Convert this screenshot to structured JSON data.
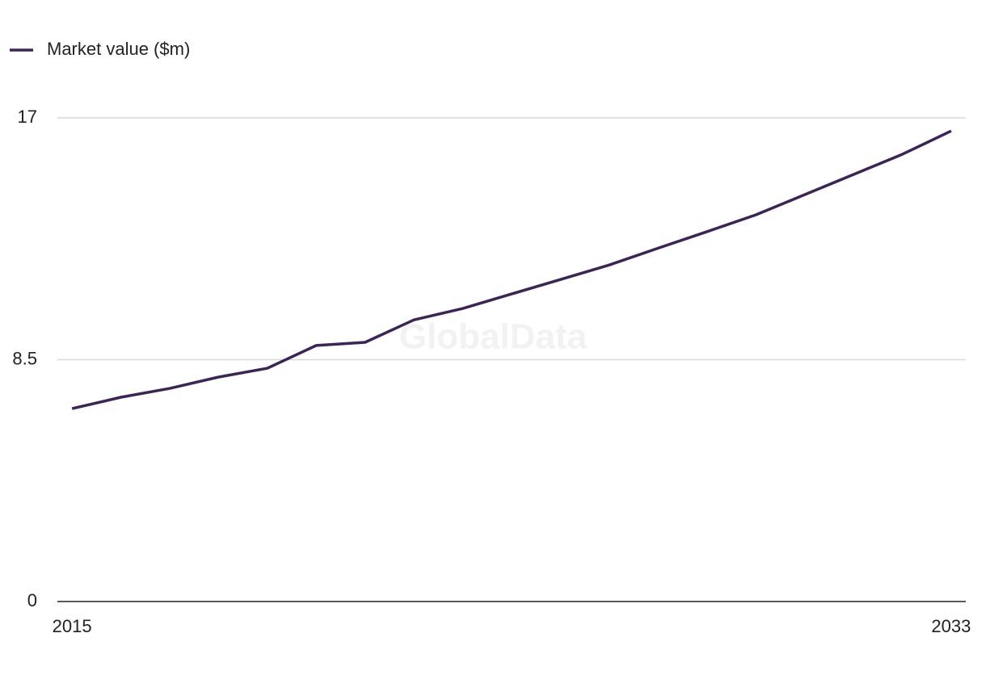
{
  "chart_data": {
    "type": "line",
    "legend": "top-left",
    "watermark": "GlobalData",
    "x": [
      2015,
      2016,
      2017,
      2018,
      2019,
      2020,
      2021,
      2022,
      2023,
      2024,
      2025,
      2026,
      2027,
      2028,
      2029,
      2030,
      2031,
      2032,
      2033
    ],
    "series": [
      {
        "name": "Market value ($m)",
        "color": "#3a2556",
        "values": [
          6.78,
          7.18,
          7.49,
          7.89,
          8.2,
          9.0,
          9.11,
          9.9,
          10.3,
          10.81,
          11.32,
          11.83,
          12.42,
          13.0,
          13.59,
          14.3,
          15.01,
          15.72,
          16.54
        ]
      }
    ],
    "xlim": [
      2014.7,
      2033.3
    ],
    "xticks": [
      2015,
      2033
    ],
    "ylim": [
      0,
      17
    ],
    "yticks": [
      0,
      8.5,
      17
    ],
    "grid": true
  }
}
